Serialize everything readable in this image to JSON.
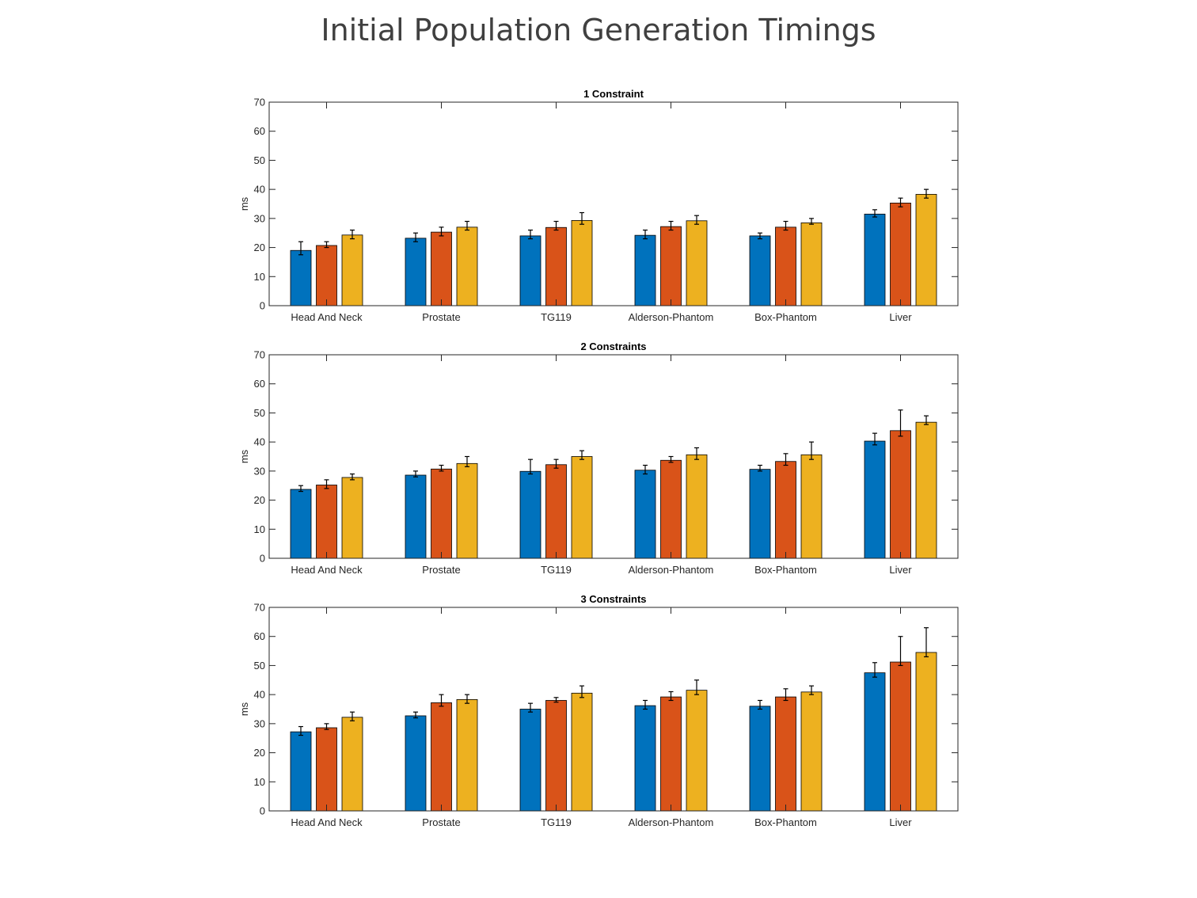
{
  "slide": {
    "title": "Initial Population Generation Timings"
  },
  "colors": {
    "series": [
      "#0072BD",
      "#D95319",
      "#EDB120"
    ],
    "axis": "#262626",
    "frame": "#262626",
    "error": "#000000"
  },
  "chart_data": [
    {
      "type": "bar",
      "title": "1 Constraint",
      "ylabel": "ms",
      "xlabel": "",
      "ylim": [
        0,
        70
      ],
      "yticks": [
        0,
        10,
        20,
        30,
        40,
        50,
        60,
        70
      ],
      "grid": false,
      "categories": [
        "Head And Neck",
        "Prostate",
        "TG119",
        "Alderson-Phantom",
        "Box-Phantom",
        "Liver"
      ],
      "series": [
        {
          "values": [
            19.0,
            23.2,
            24.0,
            24.2,
            24.0,
            31.5
          ],
          "err_low": [
            1.5,
            1.2,
            1.0,
            1.2,
            1.0,
            1.0
          ],
          "err_high": [
            3.0,
            1.8,
            2.0,
            1.8,
            1.0,
            1.5
          ]
        },
        {
          "values": [
            20.7,
            25.3,
            26.9,
            27.2,
            27.0,
            35.3
          ],
          "err_low": [
            0.7,
            1.3,
            0.9,
            1.2,
            1.0,
            1.3
          ],
          "err_high": [
            1.3,
            1.7,
            2.1,
            1.8,
            2.0,
            1.7
          ]
        },
        {
          "values": [
            24.3,
            27.0,
            29.3,
            29.2,
            28.5,
            38.3
          ],
          "err_low": [
            1.3,
            1.0,
            1.3,
            1.2,
            0.5,
            1.3
          ],
          "err_high": [
            1.7,
            2.0,
            2.7,
            1.8,
            1.5,
            1.7
          ]
        }
      ]
    },
    {
      "type": "bar",
      "title": "2 Constraints",
      "ylabel": "ms",
      "xlabel": "",
      "ylim": [
        0,
        70
      ],
      "yticks": [
        0,
        10,
        20,
        30,
        40,
        50,
        60,
        70
      ],
      "grid": false,
      "categories": [
        "Head And Neck",
        "Prostate",
        "TG119",
        "Alderson-Phantom",
        "Box-Phantom",
        "Liver"
      ],
      "series": [
        {
          "values": [
            23.7,
            28.6,
            29.9,
            30.3,
            30.6,
            40.3
          ],
          "err_low": [
            0.7,
            0.6,
            0.9,
            1.3,
            0.6,
            1.3
          ],
          "err_high": [
            1.3,
            1.4,
            4.1,
            1.7,
            1.4,
            2.7
          ]
        },
        {
          "values": [
            25.2,
            30.7,
            32.2,
            33.7,
            33.3,
            43.9
          ],
          "err_low": [
            1.2,
            0.7,
            1.2,
            0.7,
            1.3,
            1.9
          ],
          "err_high": [
            1.8,
            1.3,
            1.8,
            1.3,
            2.7,
            7.1
          ]
        },
        {
          "values": [
            27.8,
            32.6,
            35.0,
            35.6,
            35.6,
            46.8
          ],
          "err_low": [
            0.8,
            1.1,
            1.0,
            1.6,
            1.6,
            0.8
          ],
          "err_high": [
            1.2,
            2.4,
            2.0,
            2.4,
            4.4,
            2.2
          ]
        }
      ]
    },
    {
      "type": "bar",
      "title": "3 Constraints",
      "ylabel": "ms",
      "xlabel": "",
      "ylim": [
        0,
        70
      ],
      "yticks": [
        0,
        10,
        20,
        30,
        40,
        50,
        60,
        70
      ],
      "grid": false,
      "categories": [
        "Head And Neck",
        "Prostate",
        "TG119",
        "Alderson-Phantom",
        "Box-Phantom",
        "Liver"
      ],
      "series": [
        {
          "values": [
            27.2,
            32.7,
            35.0,
            36.2,
            36.0,
            47.5
          ],
          "err_low": [
            1.2,
            0.7,
            1.0,
            1.2,
            1.0,
            1.5
          ],
          "err_high": [
            1.8,
            1.3,
            2.0,
            1.8,
            2.0,
            3.5
          ]
        },
        {
          "values": [
            28.6,
            37.2,
            38.0,
            39.2,
            39.2,
            51.2
          ],
          "err_low": [
            0.6,
            1.2,
            0.6,
            1.2,
            1.2,
            1.2
          ],
          "err_high": [
            1.4,
            2.8,
            1.0,
            1.8,
            2.8,
            8.8
          ]
        },
        {
          "values": [
            32.2,
            38.3,
            40.5,
            41.5,
            40.9,
            54.5
          ],
          "err_low": [
            1.2,
            1.3,
            1.5,
            1.5,
            0.9,
            1.5
          ],
          "err_high": [
            1.8,
            1.7,
            2.5,
            3.5,
            2.1,
            8.5
          ]
        }
      ]
    }
  ]
}
